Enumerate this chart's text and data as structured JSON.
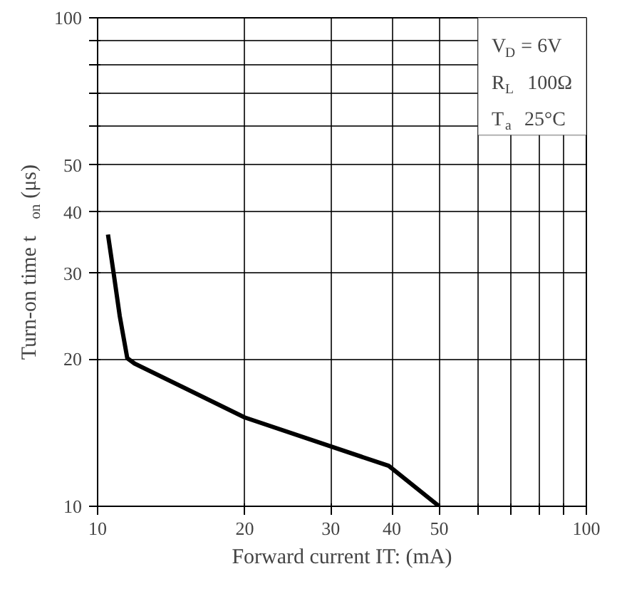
{
  "chart_data": {
    "type": "line",
    "xlabel": "Forward current IT: (mA)",
    "ylabel": "Turn-on time t$_{on}$ (μs)",
    "log": "xy",
    "grid": true,
    "marker": "none",
    "line_style": "solid",
    "x": [
      10.5,
      10.8,
      11.1,
      11.5,
      11.9,
      20,
      39.4,
      50
    ],
    "series": [
      {
        "color": "#000000",
        "values": [
          36,
          29.7,
          24.5,
          20.1,
          19.6,
          15.2,
          12.1,
          10
        ]
      }
    ],
    "xlim": [
      10,
      100
    ],
    "ylim": [
      10,
      100
    ],
    "xticks": [
      10,
      20,
      30,
      40,
      50,
      {
        "value": 60,
        "label": null
      },
      {
        "value": 70,
        "label": null
      },
      {
        "value": 80,
        "label": null
      },
      {
        "value": 90,
        "label": null
      },
      100
    ],
    "yticks": [
      10,
      20,
      30,
      40,
      50,
      {
        "value": 60,
        "label": null
      },
      {
        "value": 70,
        "label": null
      },
      {
        "value": 80,
        "label": null
      },
      {
        "value": 90,
        "label": null
      },
      100
    ],
    "annotations": [
      "V$_{D}$ = 6V",
      "R$_{L}$  100Ω",
      "T$_{a}$  25°C"
    ]
  }
}
